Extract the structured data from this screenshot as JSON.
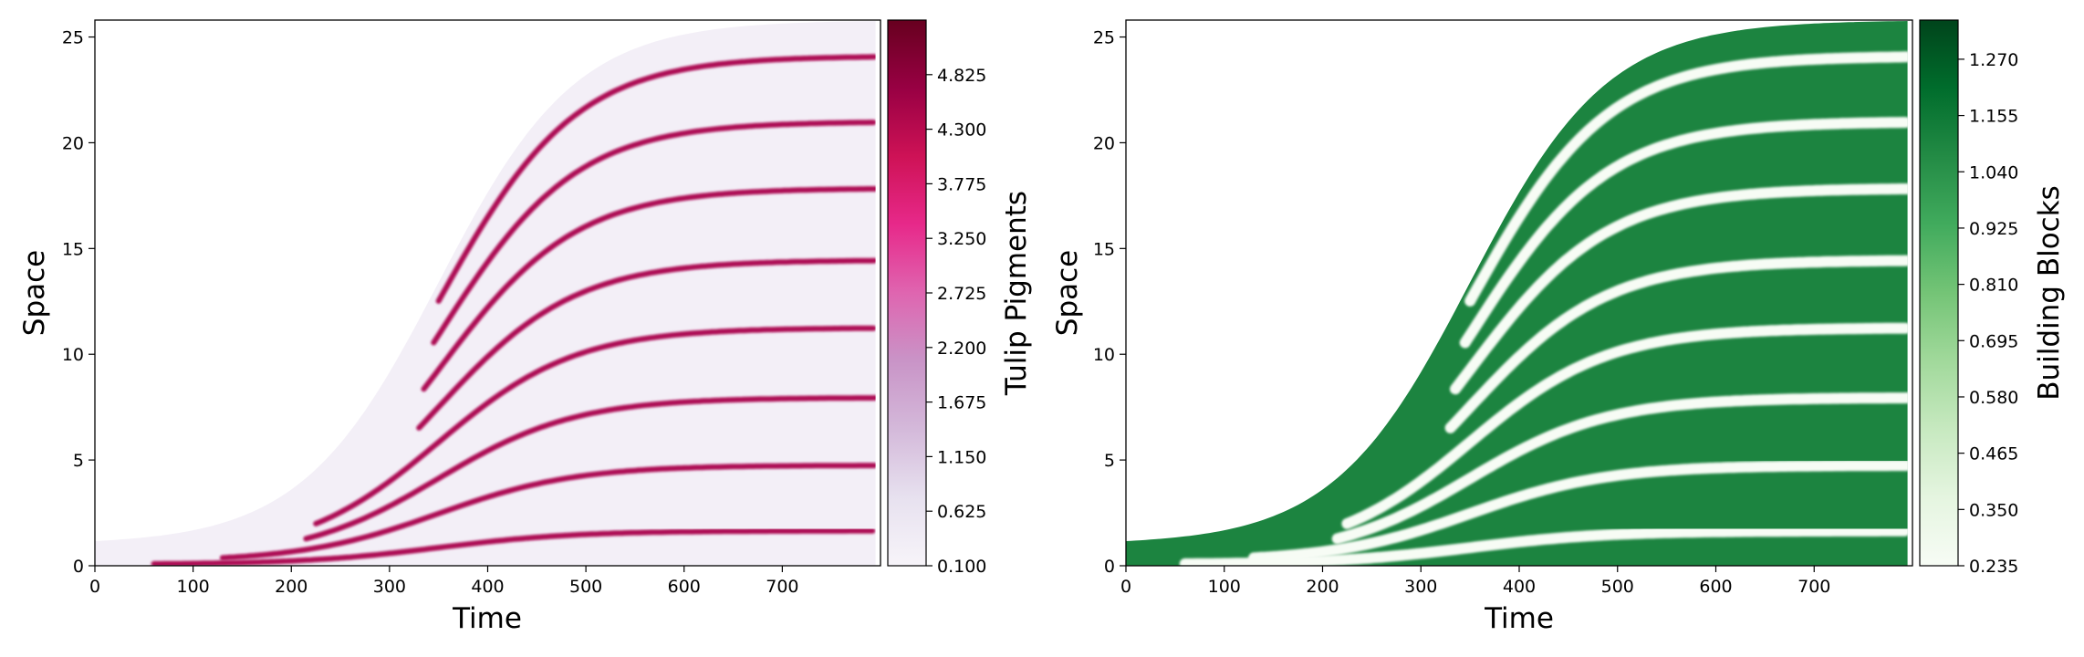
{
  "chart_data": [
    {
      "type": "heatmap",
      "xlabel": "Time",
      "ylabel": "Space",
      "xlim": [
        0,
        800
      ],
      "ylim": [
        0,
        25.8
      ],
      "x_ticks": [
        "0",
        "100",
        "200",
        "300",
        "400",
        "500",
        "600",
        "700"
      ],
      "y_ticks": [
        "0",
        "5",
        "10",
        "15",
        "20",
        "25"
      ],
      "colorbar": {
        "label": "Tulip Pigments",
        "colormap": "PuRd",
        "range": [
          0.1,
          5.35
        ],
        "ticks": [
          "0.100",
          "0.625",
          "1.150",
          "1.675",
          "2.200",
          "2.725",
          "3.250",
          "3.775",
          "4.300",
          "4.825"
        ],
        "colors": [
          "#f7f4f9",
          "#e7e1ef",
          "#d4b9da",
          "#c994c7",
          "#df65b0",
          "#e7298a",
          "#ce1256",
          "#980043",
          "#67001f"
        ]
      },
      "domain_edge": "logistic growth from 1 to 25.8",
      "background": "#f3eff7",
      "stripe_color": "#ad0f55"
    },
    {
      "type": "heatmap",
      "xlabel": "Time",
      "ylabel": "Space",
      "xlim": [
        0,
        800
      ],
      "ylim": [
        0,
        25.8
      ],
      "x_ticks": [
        "0",
        "100",
        "200",
        "300",
        "400",
        "500",
        "600",
        "700"
      ],
      "y_ticks": [
        "0",
        "5",
        "10",
        "15",
        "20",
        "25"
      ],
      "colorbar": {
        "label": "Building Blocks",
        "colormap": "Greens",
        "range": [
          0.235,
          1.35
        ],
        "ticks": [
          "0.235",
          "0.350",
          "0.465",
          "0.580",
          "0.695",
          "0.810",
          "0.925",
          "1.040",
          "1.155",
          "1.270"
        ],
        "colors": [
          "#f7fcf5",
          "#e5f5e0",
          "#c7e9c0",
          "#a1d99b",
          "#74c476",
          "#41ab5d",
          "#238b45",
          "#006d2c",
          "#00441b"
        ]
      },
      "domain_edge": "logistic growth from 1 to 25.8",
      "background": "#1c8440",
      "stripe_color": "#f7fcf5"
    }
  ]
}
